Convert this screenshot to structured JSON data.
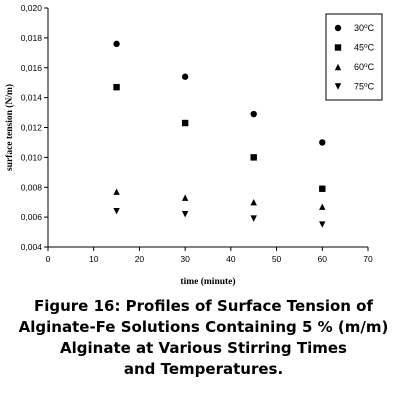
{
  "chart_data": {
    "type": "scatter",
    "xlabel": "time (minute)",
    "ylabel": "surface tension (N/m)",
    "xlim": [
      0,
      70
    ],
    "ylim": [
      0.004,
      0.02
    ],
    "x_ticks": [
      "0",
      "10",
      "20",
      "30",
      "40",
      "50",
      "60",
      "70"
    ],
    "y_ticks": [
      "0,004",
      "0,006",
      "0,008",
      "0,010",
      "0,012",
      "0,014",
      "0,016",
      "0,018",
      "0,020"
    ],
    "grid": false,
    "legend_position": "top-right",
    "series": [
      {
        "name": "30",
        "unit": "oC",
        "marker": "circle",
        "x": [
          15,
          30,
          45,
          60
        ],
        "y": [
          0.0176,
          0.0154,
          0.0129,
          0.011
        ]
      },
      {
        "name": "45",
        "unit": "oC",
        "marker": "square",
        "x": [
          15,
          30,
          45,
          60
        ],
        "y": [
          0.0147,
          0.0123,
          0.01,
          0.0079
        ]
      },
      {
        "name": "60",
        "unit": "oC",
        "marker": "triangle-up",
        "x": [
          15,
          30,
          45,
          60
        ],
        "y": [
          0.0077,
          0.0073,
          0.007,
          0.0067
        ]
      },
      {
        "name": "75",
        "unit": "oC",
        "marker": "triangle-down",
        "x": [
          15,
          30,
          45,
          60
        ],
        "y": [
          0.0064,
          0.0062,
          0.0059,
          0.0055
        ]
      }
    ]
  },
  "caption": {
    "lines": [
      "Figure 16: Profiles of Surface Tension of",
      "Alginate-Fe Solutions Containing 5 % (m/m)",
      "Alginate at Various Stirring Times",
      "and Temperatures."
    ]
  }
}
